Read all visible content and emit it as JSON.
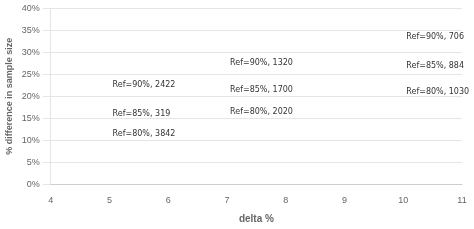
{
  "chart_data": {
    "type": "bubble",
    "xlabel": "delta %",
    "ylabel": "% difference in sample size",
    "xlim": [
      4,
      11
    ],
    "ylim": [
      0,
      40
    ],
    "xticks": [
      4,
      5,
      6,
      7,
      8,
      9,
      10,
      11
    ],
    "yticks": [
      {
        "value": 0,
        "label": "0%"
      },
      {
        "value": 5,
        "label": "5%"
      },
      {
        "value": 10,
        "label": "10%"
      },
      {
        "value": 15,
        "label": "15%"
      },
      {
        "value": 20,
        "label": "20%"
      },
      {
        "value": 25,
        "label": "25%"
      },
      {
        "value": 30,
        "label": "30%"
      },
      {
        "value": 35,
        "label": "35%"
      },
      {
        "value": 40,
        "label": "40%"
      }
    ],
    "grid": "y",
    "points": [
      {
        "x": 5.0,
        "y": 11.5,
        "radius": 5.5,
        "label": "Ref=80%, 3842",
        "color": "#2b3990"
      },
      {
        "x": 7.0,
        "y": 16.5,
        "radius": 4.5,
        "label": "Ref=80%, 2020",
        "color": "#2b3990"
      },
      {
        "x": 10.0,
        "y": 21.0,
        "radius": 3.2,
        "label": "Ref=80%, 1030",
        "color": "#2b3990"
      },
      {
        "x": 5.0,
        "y": 16.0,
        "radius": 4.5,
        "label": "Ref=85%, 319",
        "color": "#c8ccee"
      },
      {
        "x": 7.0,
        "y": 21.5,
        "radius": 4.0,
        "label": "Ref=85%, 1700",
        "color": "#c8ccee"
      },
      {
        "x": 10.0,
        "y": 27.0,
        "radius": 3.0,
        "label": "Ref=85%, 884",
        "color": "#c8ccee"
      },
      {
        "x": 5.0,
        "y": 22.5,
        "radius": 4.5,
        "label": "Ref=90%, 2422",
        "color": "#f5f5a8"
      },
      {
        "x": 7.0,
        "y": 27.5,
        "radius": 3.8,
        "label": "Ref=90%, 1320",
        "color": "#f5f5a8"
      },
      {
        "x": 10.0,
        "y": 33.5,
        "radius": 2.8,
        "label": "Ref=90%, 706",
        "color": "#f5f5a8"
      }
    ]
  }
}
